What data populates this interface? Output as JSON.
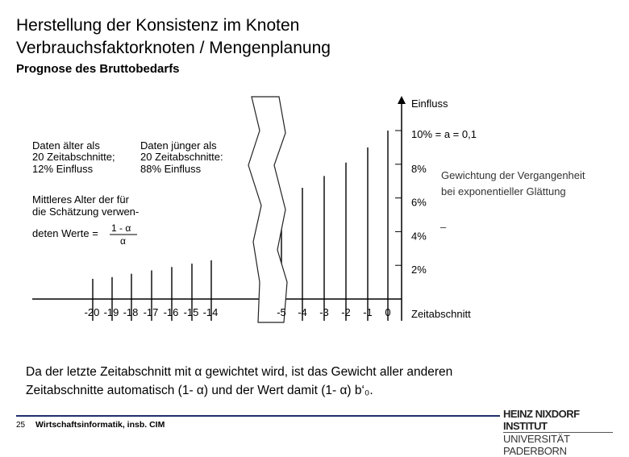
{
  "header": {
    "title": "Herstellung der Konsistenz im Knoten\nVerbrauchsfaktorknoten / Mengenplanung",
    "subtitle": "Prognose des Bruttobedarfs"
  },
  "figure": {
    "left_note_1": [
      "Daten älter als",
      "20 Zeitabschnitte;",
      "12% Einfluss"
    ],
    "left_note_2": [
      "Daten jünger als",
      "20 Zeitabschnitte:",
      "88% Einfluss"
    ],
    "mean_age_lines": [
      "Mittleres  Alter  der  für",
      "die Schätzung verwen-"
    ],
    "mean_age_lead": "deten Werte =",
    "formula_numerator": "1 - α",
    "formula_denominator": "α",
    "y_axis_title": "Einfluss",
    "alpha_label": "10% = a = 0,1",
    "y_ticks": [
      "10%",
      "8%",
      "6%",
      "4%",
      "2%"
    ],
    "x_ticks_left": [
      "-20",
      "-19",
      "-18",
      "-17",
      "-16",
      "-15",
      "-14"
    ],
    "x_ticks_right": [
      "-5",
      "-4",
      "-3",
      "-2",
      "-1",
      "0"
    ],
    "x_axis_title": "Zeitabschnitt",
    "annotation": [
      "Gewichtung der Vergangenheit",
      "bei exponentieller Glättung"
    ],
    "annotation_dash": "–"
  },
  "chart_data": {
    "type": "bar",
    "categories": [
      "-20",
      "-19",
      "-18",
      "-17",
      "-16",
      "-15",
      "-14",
      "-5",
      "-4",
      "-3",
      "-2",
      "-1",
      "0"
    ],
    "values": [
      1.2,
      1.3,
      1.5,
      1.7,
      1.9,
      2.1,
      2.3,
      5.9,
      6.6,
      7.3,
      8.1,
      9.0,
      10.0
    ],
    "ylabel": "Einfluss",
    "xlabel": "Zeitabschnitt",
    "ylim": [
      0,
      11
    ]
  },
  "body": {
    "text_line1": "Da der letzte Zeitabschnitt mit α gewichtet wird, ist das Gewicht aller anderen",
    "text_line2": "Zeitabschnitte automatisch (1- α) und der Wert damit (1- α) b‘₀."
  },
  "footer": {
    "page_number": "25",
    "course": "Wirtschaftsinformatik, insb. CIM",
    "logo_line1": "HEINZ NIXDORF INSTITUT",
    "logo_line2": "UNIVERSITÄT PADERBORN"
  },
  "colors": {
    "footer_line": "#1f2f6b",
    "bars": "#000000"
  }
}
